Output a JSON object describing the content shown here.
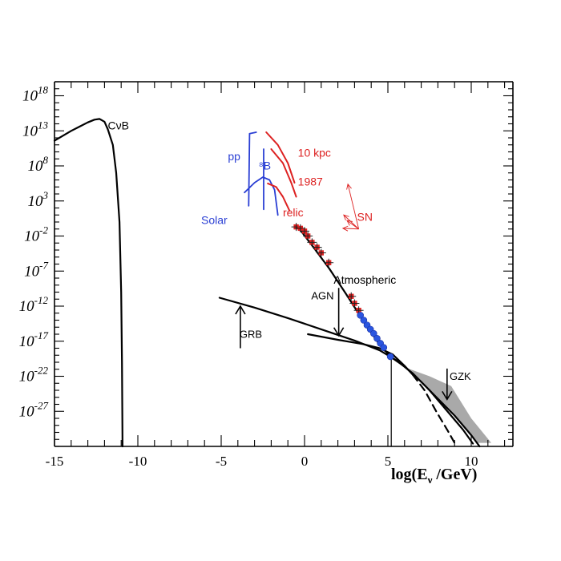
{
  "chart_data": {
    "type": "line",
    "title": "",
    "xlabel": "log(E",
    "xlabel_sub": "ν",
    "xlabel_tail": " /GeV)",
    "ylabel": "",
    "xlim": [
      -15,
      12.5
    ],
    "ylim": [
      -32,
      20
    ],
    "x_ticks": [
      {
        "value": -15,
        "label": "-15"
      },
      {
        "value": -10,
        "label": "-10"
      },
      {
        "value": -5,
        "label": "-5"
      },
      {
        "value": 0,
        "label": "0"
      },
      {
        "value": 5,
        "label": "5"
      },
      {
        "value": 10,
        "label": "10"
      }
    ],
    "y_ticks": [
      {
        "value": 18,
        "base": "10",
        "exp": "18"
      },
      {
        "value": 13,
        "base": "10",
        "exp": "13"
      },
      {
        "value": 8,
        "base": "10",
        "exp": "8"
      },
      {
        "value": 3,
        "base": "10",
        "exp": "3"
      },
      {
        "value": -2,
        "base": "10",
        "exp": "-2"
      },
      {
        "value": -7,
        "base": "10",
        "exp": "-7"
      },
      {
        "value": -12,
        "base": "10",
        "exp": "-12"
      },
      {
        "value": -17,
        "base": "10",
        "exp": "-17"
      },
      {
        "value": -22,
        "base": "10",
        "exp": "-22"
      },
      {
        "value": -27,
        "base": "10",
        "exp": "-27"
      }
    ],
    "series": [
      {
        "color": "#000000",
        "width": 2.2,
        "points": [
          [
            -15,
            11.6
          ],
          [
            -14.5,
            12.3
          ],
          [
            -14,
            13.0
          ],
          [
            -13.5,
            13.6
          ],
          [
            -13,
            14.2
          ],
          [
            -12.6,
            14.6
          ],
          [
            -12.3,
            14.7
          ],
          [
            -12,
            14.3
          ],
          [
            -11.8,
            13.2
          ],
          [
            -11.5,
            11.0
          ],
          [
            -11.3,
            7.0
          ],
          [
            -11.1,
            0.0
          ],
          [
            -11.0,
            -10.0
          ],
          [
            -10.95,
            -20.0
          ],
          [
            -10.92,
            -32.0
          ]
        ]
      },
      {
        "color": "#000000",
        "width": 2.2,
        "points": [
          [
            -5.1,
            -10.8
          ],
          [
            -3,
            -12.2
          ],
          [
            -1,
            -13.7
          ],
          [
            1,
            -15.3
          ],
          [
            3,
            -16.9
          ],
          [
            4.5,
            -18.3
          ],
          [
            5.5,
            -19.7
          ],
          [
            6.5,
            -21.6
          ],
          [
            7.5,
            -24.0
          ],
          [
            8.5,
            -26.8
          ],
          [
            9.5,
            -29.6
          ],
          [
            10.1,
            -31.6
          ]
        ]
      },
      {
        "color": "#000000",
        "width": 2.2,
        "points": [
          [
            -0.4,
            -0.7
          ],
          [
            0.5,
            -3.5
          ],
          [
            1.5,
            -6.7
          ],
          [
            2.5,
            -10.3
          ],
          [
            3.5,
            -14.0
          ],
          [
            4.5,
            -17.5
          ],
          [
            5.2,
            -19.3
          ],
          [
            6,
            -20.6
          ],
          [
            7,
            -22.8
          ],
          [
            8,
            -25.2
          ],
          [
            9,
            -27.6
          ],
          [
            10,
            -30.4
          ],
          [
            10.5,
            -32.0
          ]
        ]
      },
      {
        "color": "#000000",
        "width": 2.2,
        "points": [
          [
            0.2,
            -16.0
          ],
          [
            2,
            -16.8
          ],
          [
            3.5,
            -17.4
          ],
          [
            4.5,
            -18.0
          ],
          [
            5.3,
            -18.9
          ],
          [
            6,
            -20.5
          ],
          [
            6.5,
            -21.8
          ]
        ]
      },
      {
        "color": "#000000",
        "width": 2.2,
        "dash": "9 6",
        "points": [
          [
            6.5,
            -21.8
          ],
          [
            7.2,
            -24.0
          ],
          [
            7.9,
            -27.0
          ],
          [
            8.6,
            -29.8
          ],
          [
            9.0,
            -31.5
          ]
        ]
      },
      {
        "color": "#000000",
        "width": 1.2,
        "points": [
          [
            5.2,
            -19.3
          ],
          [
            5.2,
            -32.0
          ]
        ]
      },
      {
        "color": "#2a3fd4",
        "width": 1.8,
        "points": [
          [
            -3.35,
            2.3
          ],
          [
            -3.3,
            12.6
          ],
          [
            -2.9,
            12.8
          ]
        ]
      },
      {
        "color": "#2a3fd4",
        "width": 1.8,
        "points": [
          [
            -3.6,
            4.2
          ],
          [
            -3,
            5.6
          ],
          [
            -2.5,
            6.4
          ],
          [
            -2.1,
            6.0
          ],
          [
            -1.8,
            4.6
          ],
          [
            -1.6,
            1.0
          ]
        ]
      },
      {
        "color": "#2a3fd4",
        "width": 1.8,
        "points": [
          [
            -2.45,
            10.4
          ],
          [
            -2.45,
            1.8
          ]
        ]
      },
      {
        "color": "#dd2222",
        "width": 2.0,
        "points": [
          [
            -2.3,
            12.8
          ],
          [
            -1.6,
            11.0
          ],
          [
            -1.0,
            8.4
          ],
          [
            -0.6,
            5.6
          ]
        ]
      },
      {
        "color": "#dd2222",
        "width": 2.0,
        "points": [
          [
            -2.0,
            10.4
          ],
          [
            -1.3,
            8.4
          ],
          [
            -0.8,
            5.6
          ],
          [
            -0.5,
            3.6
          ]
        ]
      },
      {
        "color": "#dd2222",
        "width": 2.0,
        "points": [
          [
            -2.2,
            5.5
          ],
          [
            -1.7,
            5.0
          ],
          [
            -1.3,
            3.6
          ],
          [
            -0.9,
            1.6
          ]
        ]
      }
    ],
    "markers": {
      "red_crosses": [
        [
          -0.5,
          -0.7
        ],
        [
          -0.25,
          -0.9
        ],
        [
          0,
          -1.3
        ],
        [
          0.2,
          -2.0
        ],
        [
          0.45,
          -2.9
        ],
        [
          0.75,
          -3.6
        ],
        [
          1.0,
          -4.4
        ],
        [
          1.45,
          -5.8
        ],
        [
          2.8,
          -10.6
        ],
        [
          3.0,
          -11.6
        ],
        [
          3.25,
          -12.6
        ]
      ],
      "blue_dots": [
        [
          3.35,
          -13.3
        ],
        [
          3.55,
          -14.0
        ],
        [
          3.75,
          -14.7
        ],
        [
          3.95,
          -15.3
        ],
        [
          4.15,
          -15.9
        ],
        [
          4.35,
          -16.6
        ],
        [
          4.55,
          -17.3
        ],
        [
          4.75,
          -17.9
        ],
        [
          5.15,
          -19.2
        ]
      ]
    },
    "gzk_band": [
      [
        6.1,
        -20.8
      ],
      [
        7.5,
        -22.0
      ],
      [
        8.8,
        -23.4
      ],
      [
        10.0,
        -28.0
      ],
      [
        11.2,
        -31.5
      ],
      [
        10.4,
        -31.5
      ],
      [
        9.0,
        -27.5
      ],
      [
        7.5,
        -24.0
      ],
      [
        6.4,
        -21.6
      ]
    ],
    "annotations": [
      {
        "name": "cnub-label",
        "text": "CνB",
        "x": -11.8,
        "y": 13.2,
        "color": "#000000",
        "size": 14
      },
      {
        "name": "pp-label",
        "text": "pp",
        "x": -4.6,
        "y": 8.8,
        "color": "#2a3fd4",
        "size": 14
      },
      {
        "name": "b8-label",
        "text": "⁸B",
        "x": -2.75,
        "y": 7.5,
        "color": "#2a3fd4",
        "size": 14
      },
      {
        "name": "solar-label",
        "text": "Solar",
        "x": -6.2,
        "y": -0.3,
        "color": "#2a3fd4",
        "size": 14
      },
      {
        "name": "10kpc-label",
        "text": "10 kpc",
        "x": -0.4,
        "y": 9.3,
        "color": "#dd2222",
        "size": 14
      },
      {
        "name": "1987-label",
        "text": "1987",
        "x": -0.4,
        "y": 5.2,
        "color": "#dd2222",
        "size": 14
      },
      {
        "name": "relic-label",
        "text": "relic",
        "x": -1.3,
        "y": 0.8,
        "color": "#dd2222",
        "size": 14
      },
      {
        "name": "sn-label",
        "text": "SN",
        "x": 3.15,
        "y": 0.2,
        "color": "#dd2222",
        "size": 14
      },
      {
        "name": "atmospheric-label",
        "text": "Atmospheric",
        "x": 1.75,
        "y": -8.8,
        "color": "#000000",
        "size": 14
      },
      {
        "name": "agn-label",
        "text": "AGN",
        "x": 0.4,
        "y": -11.0,
        "color": "#000000",
        "size": 13
      },
      {
        "name": "grb-label",
        "text": "GRB",
        "x": -3.9,
        "y": -16.5,
        "color": "#000000",
        "size": 13
      },
      {
        "name": "gzk-label",
        "text": "GZK",
        "x": 8.7,
        "y": -22.5,
        "color": "#000000",
        "size": 13
      }
    ]
  }
}
